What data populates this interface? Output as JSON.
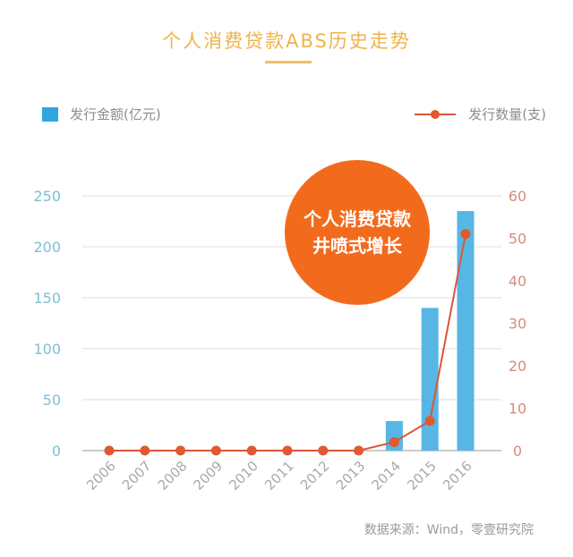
{
  "header": {
    "title": "个人消费贷款ABS历史走势"
  },
  "legend": {
    "bar_label": "发行金额(亿元)",
    "line_label": "发行数量(支)"
  },
  "badge": {
    "line1": "个人消费贷款",
    "line2": "井喷式增长"
  },
  "footer": {
    "source": "数据来源：Wind，零壹研究院"
  },
  "colors": {
    "title": "#f0b24a",
    "bar": "#2ea7df",
    "line": "#d9573a",
    "badge": "#f26b1d",
    "left_axis": "#7cbfd6",
    "right_axis": "#d58d7c"
  },
  "chart_data": {
    "type": "bar",
    "title": "个人消费贷款ABS历史走势",
    "categories": [
      "2006",
      "2007",
      "2008",
      "2009",
      "2010",
      "2011",
      "2012",
      "2013",
      "2014",
      "2015",
      "2016"
    ],
    "series": [
      {
        "name": "发行金额(亿元)",
        "type": "bar",
        "axis": "left",
        "values": [
          0,
          0,
          0,
          0,
          0,
          0,
          0,
          0,
          29,
          140,
          235
        ]
      },
      {
        "name": "发行数量(支)",
        "type": "line",
        "axis": "right",
        "values": [
          0,
          0,
          0,
          0,
          0,
          0,
          0,
          0,
          2,
          7,
          51
        ]
      }
    ],
    "xlabel": "",
    "ylabel": "发行金额(亿元)",
    "y2label": "发行数量(支)",
    "ylim": [
      0,
      250
    ],
    "y2lim": [
      0,
      60
    ],
    "yticks": [
      0,
      50,
      100,
      150,
      200,
      250
    ],
    "y2ticks": [
      0,
      10,
      20,
      30,
      40,
      50,
      60
    ],
    "grid": true,
    "legend_position": "top",
    "annotations": [
      "个人消费贷款井喷式增长"
    ],
    "source": "数据来源：Wind，零壹研究院"
  }
}
